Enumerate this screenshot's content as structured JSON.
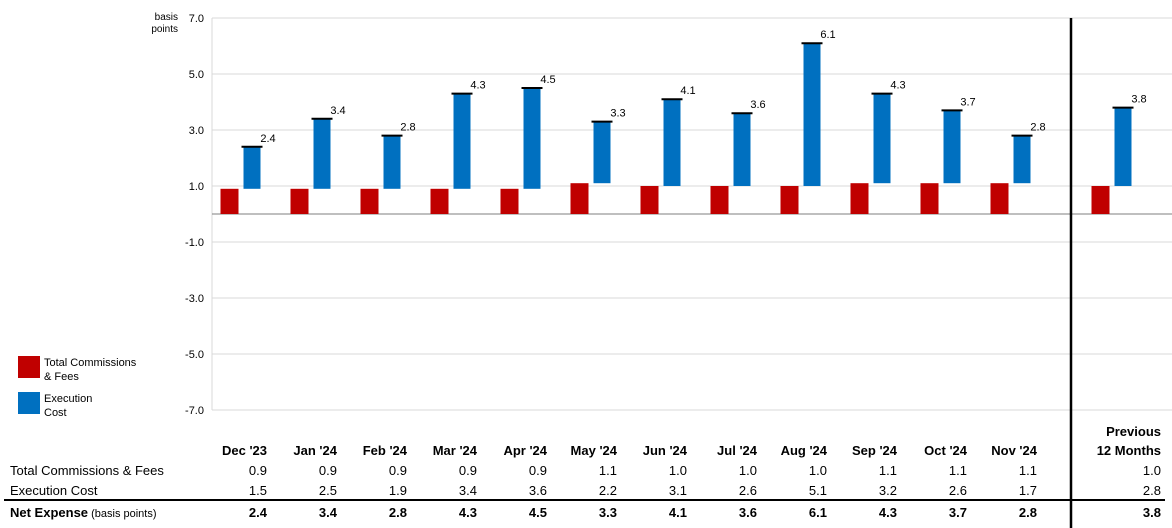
{
  "chart_data": {
    "type": "bar",
    "y_unit_label": [
      "basis",
      "points"
    ],
    "ylim": [
      -7.0,
      7.0
    ],
    "y_ticks": [
      "7.0",
      "5.0",
      "3.0",
      "1.0",
      "-1.0",
      "-3.0",
      "-5.0",
      "-7.0"
    ],
    "y_tick_values": [
      7,
      5,
      3,
      1,
      -1,
      -3,
      -5,
      -7
    ],
    "categories": [
      "Dec '23",
      "Jan '24",
      "Feb '24",
      "Mar '24",
      "Apr '24",
      "May '24",
      "Jun '24",
      "Jul '24",
      "Aug '24",
      "Sep '24",
      "Oct '24",
      "Nov '24"
    ],
    "summary_category": [
      "Previous",
      "12 Months"
    ],
    "series": [
      {
        "name": "Total Commissions & Fees",
        "color": "#c00000",
        "values": [
          0.9,
          0.9,
          0.9,
          0.9,
          0.9,
          1.1,
          1.0,
          1.0,
          1.0,
          1.1,
          1.1,
          1.1
        ],
        "summary": 1.0
      },
      {
        "name": "Execution Cost",
        "color": "#0070c0",
        "values": [
          1.5,
          2.5,
          1.9,
          3.4,
          3.6,
          2.2,
          3.1,
          2.6,
          5.1,
          3.2,
          2.6,
          1.7
        ],
        "summary": 2.8
      }
    ],
    "net": {
      "values": [
        2.4,
        3.4,
        2.8,
        4.3,
        4.5,
        3.3,
        4.1,
        3.6,
        6.1,
        4.3,
        3.7,
        2.8
      ],
      "summary": 3.8
    },
    "legend": {
      "placement": "left",
      "entries": [
        {
          "label_lines": [
            "Total Commissions",
            "& Fees"
          ],
          "color": "#c00000"
        },
        {
          "label_lines": [
            "Execution",
            "Cost"
          ],
          "color": "#0070c0"
        }
      ]
    }
  },
  "table": {
    "header_summary_lines": [
      "Previous",
      "12 Months"
    ],
    "rows": [
      {
        "label": "Total Commissions & Fees",
        "values": [
          "0.9",
          "0.9",
          "0.9",
          "0.9",
          "0.9",
          "1.1",
          "1.0",
          "1.0",
          "1.0",
          "1.1",
          "1.1",
          "1.1"
        ],
        "summary": "1.0"
      },
      {
        "label": "Execution Cost",
        "values": [
          "1.5",
          "2.5",
          "1.9",
          "3.4",
          "3.6",
          "2.2",
          "3.1",
          "2.6",
          "5.1",
          "3.2",
          "2.6",
          "1.7"
        ],
        "summary": "2.8"
      },
      {
        "label": "Net Expense",
        "label_suffix": "(basis points)",
        "values": [
          "2.4",
          "3.4",
          "2.8",
          "4.3",
          "4.5",
          "3.3",
          "4.1",
          "3.6",
          "6.1",
          "4.3",
          "3.7",
          "2.8"
        ],
        "summary": "3.8"
      }
    ]
  }
}
